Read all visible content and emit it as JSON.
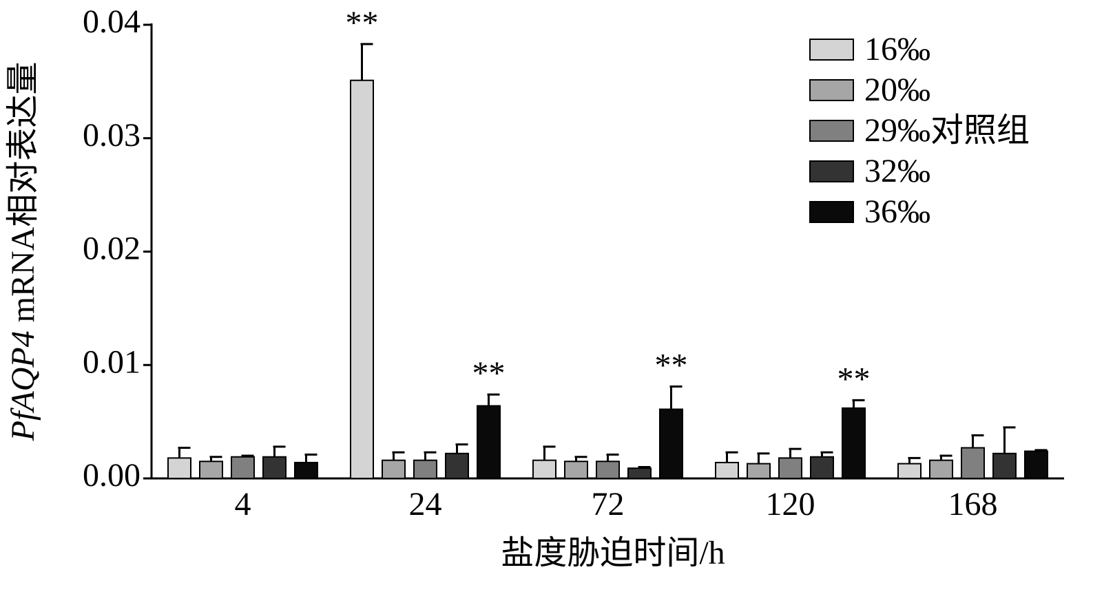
{
  "chart_data": {
    "type": "bar",
    "y_label_parts": [
      {
        "text": "PfAQP4",
        "italic": true
      },
      {
        "text": "mRNA相对表达量",
        "italic": false
      }
    ],
    "x_label": "盐度胁迫时间/h",
    "categories": [
      "4",
      "24",
      "72",
      "120",
      "168"
    ],
    "series": [
      {
        "name": "16‰",
        "color": "#d4d4d4",
        "values": [
          0.0018,
          0.0351,
          0.0016,
          0.0014,
          0.0013
        ],
        "errors": [
          0.0009,
          0.0032,
          0.0012,
          0.0009,
          0.0005
        ],
        "annotations": [
          null,
          "**",
          null,
          null,
          null
        ]
      },
      {
        "name": "20‰",
        "color": "#a6a6a6",
        "values": [
          0.0015,
          0.0016,
          0.0015,
          0.0013,
          0.0016
        ],
        "errors": [
          0.0004,
          0.0007,
          0.0004,
          0.0009,
          0.0004
        ],
        "annotations": [
          null,
          null,
          null,
          null,
          null
        ]
      },
      {
        "name": "29‰对照组",
        "color": "#808080",
        "values": [
          0.0019,
          0.0016,
          0.0015,
          0.0018,
          0.0027
        ],
        "errors": [
          0.0001,
          0.0007,
          0.0006,
          0.0008,
          0.0011
        ],
        "annotations": [
          null,
          null,
          null,
          null,
          null
        ]
      },
      {
        "name": "32‰",
        "color": "#333333",
        "values": [
          0.0019,
          0.0022,
          0.0009,
          0.0019,
          0.0022
        ],
        "errors": [
          0.0009,
          0.0008,
          0.0001,
          0.0004,
          0.0023
        ],
        "annotations": [
          null,
          null,
          null,
          null,
          null
        ]
      },
      {
        "name": "36‰",
        "color": "#0a0a0a",
        "values": [
          0.0014,
          0.0064,
          0.0061,
          0.0062,
          0.0024
        ],
        "errors": [
          0.0007,
          0.001,
          0.002,
          0.0007,
          0.0001
        ],
        "annotations": [
          null,
          "**",
          "**",
          "**",
          null
        ]
      }
    ],
    "ylim": [
      0,
      0.04
    ],
    "yticks": [
      {
        "value": 0,
        "label": "0.00"
      },
      0.01,
      0.02,
      0.03,
      0.04
    ],
    "legend": "top-right",
    "grid": false
  }
}
